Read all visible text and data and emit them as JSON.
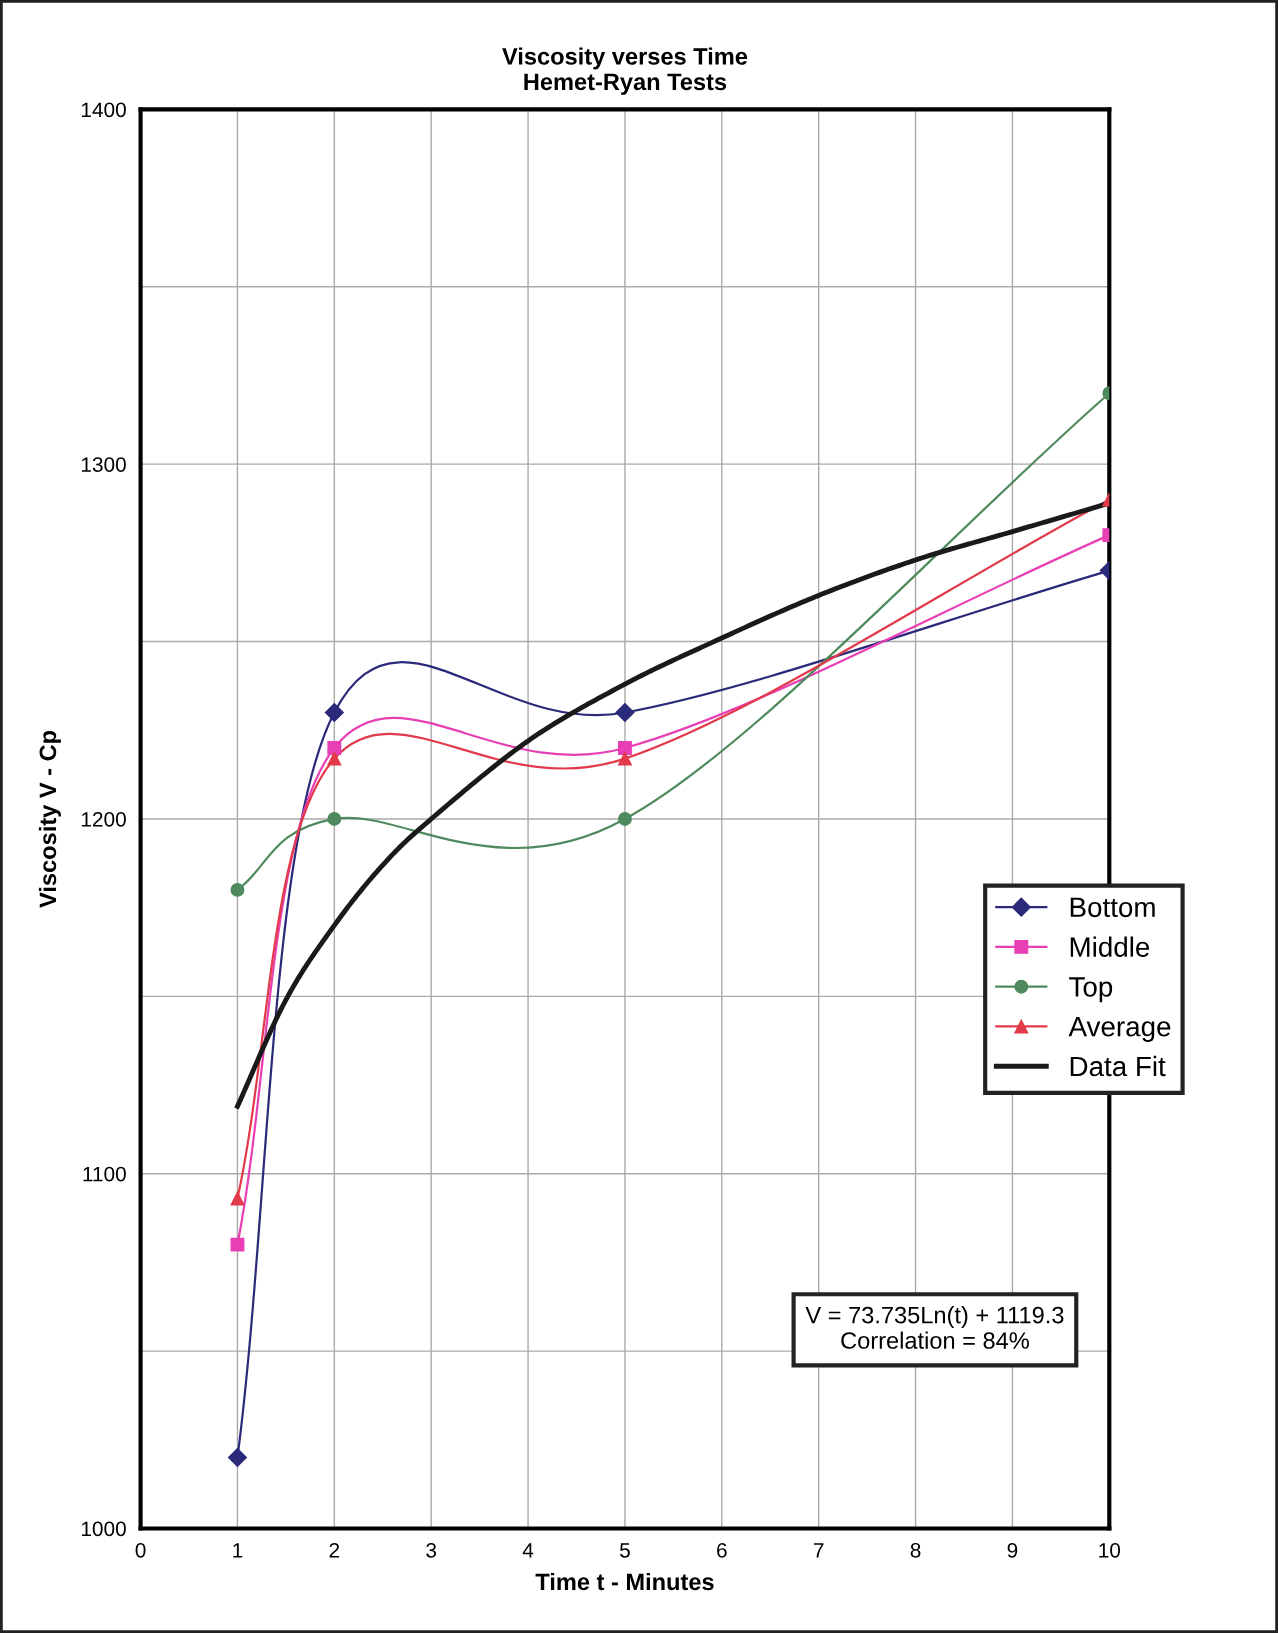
{
  "chart_data": {
    "type": "line",
    "title": "Viscosity verses Time\nHemet-Ryan Tests",
    "xlabel": "Time t - Minutes",
    "ylabel": "Viscosity V - Cp",
    "x": [
      1,
      2,
      5,
      10
    ],
    "series": [
      {
        "name": "Bottom",
        "color": "#2b2a7a",
        "marker": "diamond",
        "values": [
          1020,
          1230,
          1230,
          1270
        ]
      },
      {
        "name": "Middle",
        "color": "#e83fb5",
        "marker": "square",
        "values": [
          1080,
          1220,
          1220,
          1280
        ]
      },
      {
        "name": "Top",
        "color": "#4e8a5e",
        "marker": "circle",
        "values": [
          1180,
          1200,
          1200,
          1320
        ]
      },
      {
        "name": "Average",
        "color": "#e23a4a",
        "marker": "triangle",
        "values": [
          1093,
          1217,
          1217,
          1290
        ]
      },
      {
        "name": "Data Fit",
        "color": "#1a1a1a",
        "marker": "none",
        "x": [
          1,
          1.5,
          2,
          2.5,
          3,
          4,
          5,
          6,
          7,
          8,
          9,
          10
        ],
        "values": [
          1119,
          1149,
          1170,
          1187,
          1200,
          1222,
          1238,
          1251,
          1263,
          1273,
          1281,
          1289
        ]
      }
    ],
    "xlim": [
      0,
      10
    ],
    "xticks": [
      0,
      1,
      2,
      3,
      4,
      5,
      6,
      7,
      8,
      9,
      10
    ],
    "ylim": [
      1000,
      1400
    ],
    "yticks": [
      1000,
      {
        "value": 1050,
        "label": null
      },
      1100,
      {
        "value": 1150,
        "label": null
      },
      1200,
      {
        "value": 1250,
        "label": null
      },
      1300,
      {
        "value": 1350,
        "label": null
      },
      1400
    ],
    "grid": true,
    "legend": "right",
    "annotations": [
      "V = 73.735Ln(t) + 1119.3\nCorrelation = 84%"
    ]
  }
}
